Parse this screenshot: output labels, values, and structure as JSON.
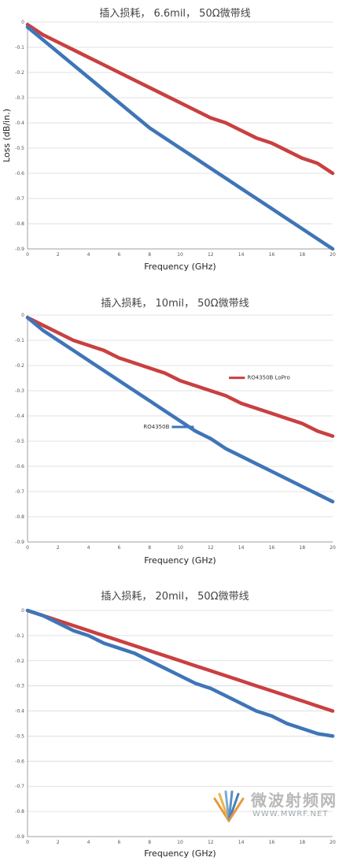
{
  "chart_data": [
    {
      "type": "line",
      "title": "插入损耗， 6.6mil， 50Ω微带线",
      "xlabel": "Frequency (GHz)",
      "ylabel": "Loss (dB/in.)",
      "xlim": [
        0,
        20
      ],
      "ylim": [
        -0.9,
        0
      ],
      "x_ticks": [
        "0",
        "2",
        "4",
        "6",
        "8",
        "10",
        "12",
        "14",
        "16",
        "18",
        "20"
      ],
      "y_ticks": [
        "0",
        "-0.1",
        "-0.2",
        "-0.3",
        "-0.4",
        "-0.5",
        "-0.6",
        "-0.7",
        "-0.8",
        "-0.9"
      ],
      "grid": true,
      "series": [
        {
          "color": "#c94040",
          "x": [
            0,
            1,
            2,
            3,
            4,
            5,
            6,
            7,
            8,
            9,
            10,
            11,
            12,
            13,
            14,
            15,
            16,
            17,
            18,
            19,
            20
          ],
          "values": [
            -0.01,
            -0.05,
            -0.08,
            -0.11,
            -0.14,
            -0.17,
            -0.2,
            -0.23,
            -0.26,
            -0.29,
            -0.32,
            -0.35,
            -0.38,
            -0.4,
            -0.43,
            -0.46,
            -0.48,
            -0.51,
            -0.54,
            -0.56,
            -0.6
          ]
        },
        {
          "color": "#3f75b8",
          "x": [
            0,
            1,
            2,
            3,
            4,
            5,
            6,
            7,
            8,
            9,
            10,
            11,
            12,
            13,
            14,
            15,
            16,
            17,
            18,
            19,
            20
          ],
          "values": [
            -0.02,
            -0.07,
            -0.12,
            -0.17,
            -0.22,
            -0.27,
            -0.32,
            -0.37,
            -0.42,
            -0.46,
            -0.5,
            -0.54,
            -0.58,
            -0.62,
            -0.66,
            -0.7,
            -0.74,
            -0.78,
            -0.82,
            -0.86,
            -0.9
          ]
        }
      ]
    },
    {
      "type": "line",
      "title": "插入损耗， 10mil， 50Ω微带线",
      "xlabel": "Frequency (GHz)",
      "ylabel": "",
      "xlim": [
        0,
        20
      ],
      "ylim": [
        -0.9,
        0
      ],
      "x_ticks": [
        "0",
        "2",
        "4",
        "6",
        "8",
        "10",
        "12",
        "14",
        "16",
        "18",
        "20"
      ],
      "y_ticks": [
        "0",
        "-0.1",
        "-0.2",
        "-0.3",
        "-0.4",
        "-0.5",
        "-0.6",
        "-0.7",
        "-0.8",
        "-0.9"
      ],
      "grid": true,
      "series": [
        {
          "name": "RO4350B LoPro",
          "color": "#c94040",
          "x": [
            0,
            1,
            2,
            3,
            4,
            5,
            6,
            7,
            8,
            9,
            10,
            11,
            12,
            13,
            14,
            15,
            16,
            17,
            18,
            19,
            20
          ],
          "values": [
            -0.01,
            -0.04,
            -0.07,
            -0.1,
            -0.12,
            -0.14,
            -0.17,
            -0.19,
            -0.21,
            -0.23,
            -0.26,
            -0.28,
            -0.3,
            -0.32,
            -0.35,
            -0.37,
            -0.39,
            -0.41,
            -0.43,
            -0.46,
            -0.48
          ]
        },
        {
          "name": "RO4350B",
          "color": "#3f75b8",
          "x": [
            0,
            1,
            2,
            3,
            4,
            5,
            6,
            7,
            8,
            9,
            10,
            11,
            12,
            13,
            14,
            15,
            16,
            17,
            18,
            19,
            20
          ],
          "values": [
            -0.01,
            -0.06,
            -0.1,
            -0.14,
            -0.18,
            -0.22,
            -0.26,
            -0.3,
            -0.34,
            -0.38,
            -0.42,
            -0.46,
            -0.49,
            -0.53,
            -0.56,
            -0.59,
            -0.62,
            -0.65,
            -0.68,
            -0.71,
            -0.74
          ]
        }
      ]
    },
    {
      "type": "line",
      "title": "插入损耗， 20mil， 50Ω微带线",
      "xlabel": "Frequency (GHz)",
      "ylabel": "",
      "xlim": [
        0,
        20
      ],
      "ylim": [
        -0.9,
        0
      ],
      "x_ticks": [
        "0",
        "2",
        "4",
        "6",
        "8",
        "10",
        "12",
        "14",
        "16",
        "18",
        "20"
      ],
      "y_ticks": [
        "0",
        "-0.1",
        "-0.2",
        "-0.3",
        "-0.4",
        "-0.5",
        "-0.6",
        "-0.7",
        "-0.8",
        "-0.9"
      ],
      "grid": true,
      "series": [
        {
          "color": "#c94040",
          "x": [
            0,
            1,
            2,
            3,
            4,
            5,
            6,
            7,
            8,
            9,
            10,
            11,
            12,
            13,
            14,
            15,
            16,
            17,
            18,
            19,
            20
          ],
          "values": [
            0,
            -0.02,
            -0.04,
            -0.06,
            -0.08,
            -0.1,
            -0.12,
            -0.14,
            -0.16,
            -0.18,
            -0.2,
            -0.22,
            -0.24,
            -0.26,
            -0.28,
            -0.3,
            -0.32,
            -0.34,
            -0.36,
            -0.38,
            -0.4
          ]
        },
        {
          "color": "#3f75b8",
          "x": [
            0,
            1,
            2,
            3,
            4,
            5,
            6,
            7,
            8,
            9,
            10,
            11,
            12,
            13,
            14,
            15,
            16,
            17,
            18,
            19,
            20
          ],
          "values": [
            0,
            -0.02,
            -0.05,
            -0.08,
            -0.1,
            -0.13,
            -0.15,
            -0.17,
            -0.2,
            -0.23,
            -0.26,
            -0.29,
            -0.31,
            -0.34,
            -0.37,
            -0.4,
            -0.42,
            -0.45,
            -0.47,
            -0.49,
            -0.5
          ]
        }
      ]
    }
  ],
  "watermark": {
    "text_cn": "微波射频网",
    "text_en": "WWW.MWRF.NET"
  }
}
